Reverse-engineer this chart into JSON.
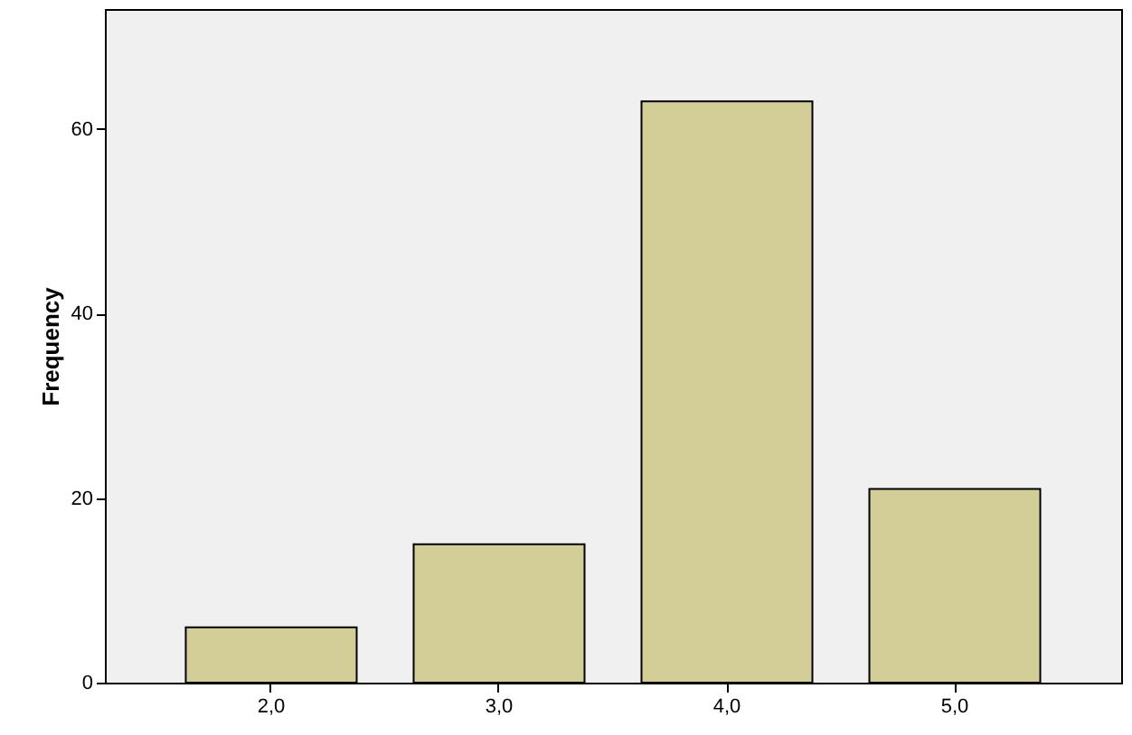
{
  "chart_data": {
    "type": "bar",
    "ylabel": "Frequency",
    "categories": [
      "2,0",
      "3,0",
      "4,0",
      "5,0"
    ],
    "values": [
      6,
      15,
      63,
      21
    ],
    "color": "#d3ce97",
    "ylim": [
      0,
      73
    ],
    "yticks": [
      0,
      20,
      40,
      60
    ],
    "grid": false
  }
}
